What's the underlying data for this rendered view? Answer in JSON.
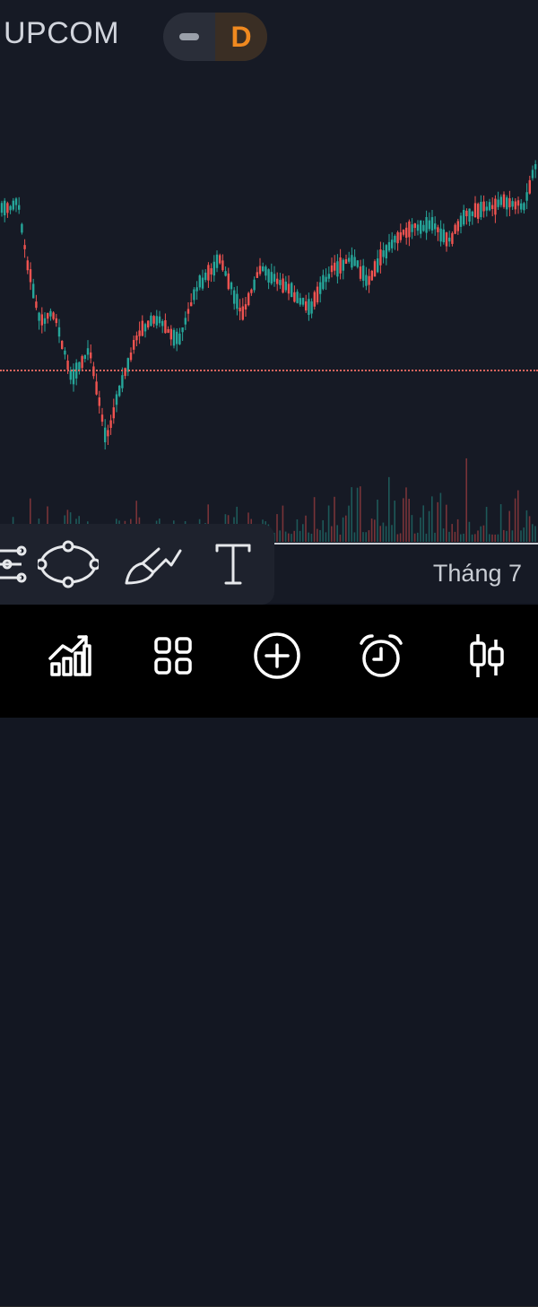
{
  "header": {
    "exchange_label": "UPCOM",
    "timeframe_label": "D"
  },
  "chart": {
    "type": "candlestick",
    "x_axis_label": "Tháng 7",
    "colors": {
      "up": "#26a69a",
      "down": "#ef5350",
      "reference_line": "#e0665e",
      "background": "#161a25"
    }
  },
  "drawing_tools": [
    {
      "name": "fib-tool-icon"
    },
    {
      "name": "ellipse-tool-icon"
    },
    {
      "name": "brush-tool-icon"
    },
    {
      "name": "text-tool-icon"
    }
  ],
  "bottom_nav": [
    {
      "name": "indicators-icon"
    },
    {
      "name": "layouts-grid-icon"
    },
    {
      "name": "add-icon"
    },
    {
      "name": "alarm-clock-icon"
    },
    {
      "name": "chart-type-candles-icon"
    }
  ]
}
